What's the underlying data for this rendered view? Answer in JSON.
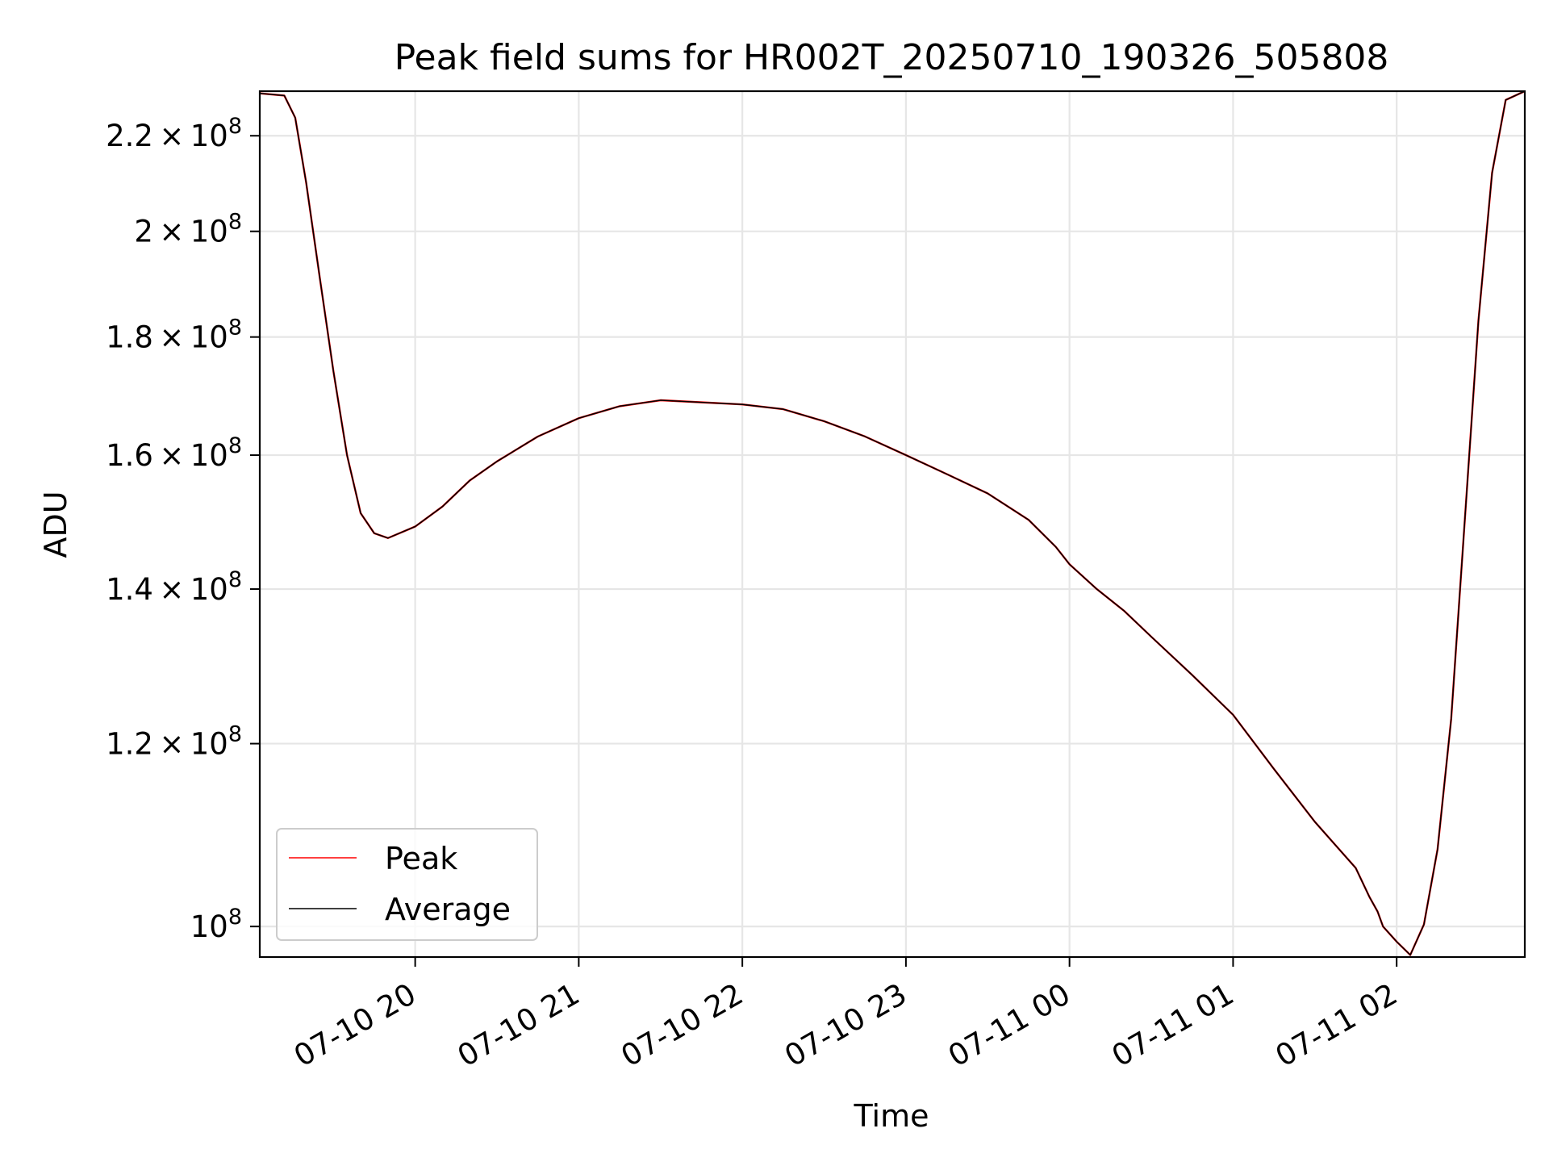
{
  "chart_data": {
    "type": "line",
    "title": "Peak field sums for HR002T_20250710_190326_505808",
    "xlabel": "Time",
    "ylabel": "ADU",
    "yscale": "log",
    "grid": true,
    "legend_position": "lower-left",
    "xlim": [
      "2025-07-10 19:03",
      "2025-07-11 02:47"
    ],
    "ylim": [
      97000000,
      230000000
    ],
    "x_ticks": [
      {
        "value": "2025-07-10 20:00",
        "label": "07-10 20"
      },
      {
        "value": "2025-07-10 21:00",
        "label": "07-10 21"
      },
      {
        "value": "2025-07-10 22:00",
        "label": "07-10 22"
      },
      {
        "value": "2025-07-10 23:00",
        "label": "07-10 23"
      },
      {
        "value": "2025-07-11 00:00",
        "label": "07-11 00"
      },
      {
        "value": "2025-07-11 01:00",
        "label": "07-11 01"
      },
      {
        "value": "2025-07-11 02:00",
        "label": "07-11 02"
      }
    ],
    "y_ticks": [
      {
        "value": 100000000,
        "mantissa": "",
        "exp": "8"
      },
      {
        "value": 120000000,
        "mantissa": "1.2",
        "exp": "8"
      },
      {
        "value": 140000000,
        "mantissa": "1.4",
        "exp": "8"
      },
      {
        "value": 160000000,
        "mantissa": "1.6",
        "exp": "8"
      },
      {
        "value": 180000000,
        "mantissa": "1.8",
        "exp": "8"
      },
      {
        "value": 200000000,
        "mantissa": "2",
        "exp": "8"
      },
      {
        "value": 220000000,
        "mantissa": "2.2",
        "exp": "8"
      }
    ],
    "series": [
      {
        "name": "Peak",
        "color": "#ff0000"
      },
      {
        "name": "Average",
        "color": "#000000"
      }
    ],
    "x": [
      "2025-07-10 19:03",
      "2025-07-10 19:12",
      "2025-07-10 19:16",
      "2025-07-10 19:20",
      "2025-07-10 19:25",
      "2025-07-10 19:30",
      "2025-07-10 19:35",
      "2025-07-10 19:40",
      "2025-07-10 19:45",
      "2025-07-10 19:50",
      "2025-07-10 20:00",
      "2025-07-10 20:10",
      "2025-07-10 20:20",
      "2025-07-10 20:30",
      "2025-07-10 20:45",
      "2025-07-10 21:00",
      "2025-07-10 21:15",
      "2025-07-10 21:30",
      "2025-07-10 22:00",
      "2025-07-10 22:15",
      "2025-07-10 22:30",
      "2025-07-10 22:45",
      "2025-07-10 23:00",
      "2025-07-10 23:15",
      "2025-07-10 23:30",
      "2025-07-10 23:45",
      "2025-07-10 23:55",
      "2025-07-11 00:00",
      "2025-07-11 00:10",
      "2025-07-11 00:20",
      "2025-07-11 00:30",
      "2025-07-11 00:45",
      "2025-07-11 01:00",
      "2025-07-11 01:15",
      "2025-07-11 01:30",
      "2025-07-11 01:45",
      "2025-07-11 01:50",
      "2025-07-11 01:53",
      "2025-07-11 01:55",
      "2025-07-11 02:00",
      "2025-07-11 02:05",
      "2025-07-11 02:10",
      "2025-07-11 02:15",
      "2025-07-11 02:20",
      "2025-07-11 02:25",
      "2025-07-11 02:30",
      "2025-07-11 02:35",
      "2025-07-11 02:40",
      "2025-07-11 02:47"
    ],
    "peak": [
      229500000,
      229000000,
      224000000,
      210000000,
      191000000,
      174000000,
      160000000,
      151000000,
      148000000,
      147300000,
      149000000,
      152000000,
      156000000,
      159000000,
      163000000,
      166000000,
      168000000,
      169000000,
      168300000,
      167500000,
      165500000,
      163000000,
      160000000,
      157000000,
      154000000,
      150000000,
      146000000,
      143500000,
      140000000,
      137000000,
      133500000,
      128500000,
      123500000,
      117000000,
      111000000,
      106000000,
      103000000,
      101500000,
      100000000,
      98500000,
      97200000,
      100200000,
      108000000,
      123000000,
      150000000,
      183000000,
      212000000,
      228000000,
      230000000
    ],
    "average": [
      229500000,
      229000000,
      224000000,
      210000000,
      191000000,
      174000000,
      160000000,
      151000000,
      148000000,
      147300000,
      149000000,
      152000000,
      156000000,
      159000000,
      163000000,
      166000000,
      168000000,
      169000000,
      168300000,
      167500000,
      165500000,
      163000000,
      160000000,
      157000000,
      154000000,
      150000000,
      146000000,
      143500000,
      140000000,
      137000000,
      133500000,
      128500000,
      123500000,
      117000000,
      111000000,
      106000000,
      103000000,
      101500000,
      100000000,
      98500000,
      97200000,
      100200000,
      108000000,
      123000000,
      150000000,
      183000000,
      212000000,
      228000000,
      230000000
    ]
  }
}
